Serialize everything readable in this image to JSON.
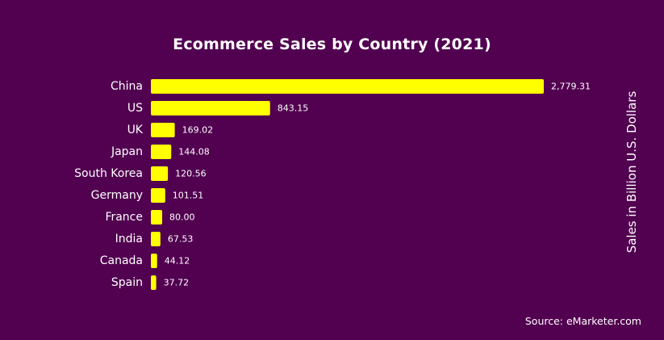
{
  "chart_data": {
    "type": "bar",
    "orientation": "horizontal",
    "title": "Ecommerce Sales by Country (2021)",
    "ylabel": "Sales in Billion U.S. Dollars",
    "categories": [
      "China",
      "US",
      "UK",
      "Japan",
      "South Korea",
      "Germany",
      "France",
      "India",
      "Canada",
      "Spain"
    ],
    "values": [
      2779.31,
      843.15,
      169.02,
      144.08,
      120.56,
      101.51,
      80.0,
      67.53,
      44.12,
      37.72
    ],
    "value_labels": [
      "2,779.31",
      "843.15",
      "169.02",
      "144.08",
      "120.56",
      "101.51",
      "80.00",
      "67.53",
      "44.12",
      "37.72"
    ],
    "xlim": [
      0,
      2779.31
    ],
    "grid": false,
    "legend": false,
    "bar_color": "#FFFF00",
    "background_color": "#520050"
  },
  "source": "Source: eMarketer.com"
}
